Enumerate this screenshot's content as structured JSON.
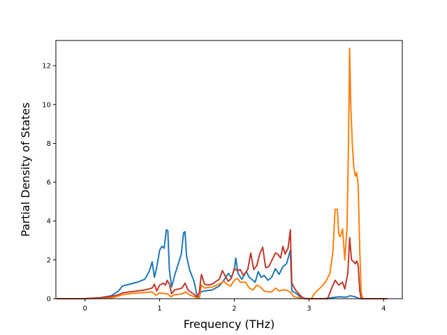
{
  "chart_data": {
    "type": "line",
    "title": "",
    "xlabel": "Frequency (THz)",
    "ylabel": "Partial Density of States",
    "xlim": [
      -0.39,
      4.25
    ],
    "ylim": [
      0,
      13.3
    ],
    "xticks": [
      0,
      1,
      2,
      3,
      4
    ],
    "yticks": [
      0,
      2,
      4,
      6,
      8,
      10,
      12
    ],
    "grid": false,
    "legend": "none",
    "series": [
      {
        "color": "#1f77b4",
        "points": [
          [
            -0.38,
            0
          ],
          [
            0,
            0
          ],
          [
            0.2,
            0.05
          ],
          [
            0.35,
            0.15
          ],
          [
            0.45,
            0.4
          ],
          [
            0.5,
            0.65
          ],
          [
            0.6,
            0.75
          ],
          [
            0.7,
            0.85
          ],
          [
            0.8,
            1.0
          ],
          [
            0.86,
            1.4
          ],
          [
            0.9,
            1.9
          ],
          [
            0.93,
            1.1
          ],
          [
            0.96,
            1.6
          ],
          [
            1.0,
            2.5
          ],
          [
            1.03,
            2.7
          ],
          [
            1.06,
            2.6
          ],
          [
            1.09,
            3.55
          ],
          [
            1.11,
            3.5
          ],
          [
            1.13,
            1.5
          ],
          [
            1.16,
            0.6
          ],
          [
            1.2,
            1.2
          ],
          [
            1.25,
            1.8
          ],
          [
            1.29,
            2.3
          ],
          [
            1.32,
            3.4
          ],
          [
            1.34,
            3.45
          ],
          [
            1.36,
            2.2
          ],
          [
            1.4,
            1.5
          ],
          [
            1.46,
            0.9
          ],
          [
            1.5,
            0.2
          ],
          [
            1.53,
            0.05
          ],
          [
            1.55,
            0.35
          ],
          [
            1.6,
            0.4
          ],
          [
            1.7,
            0.45
          ],
          [
            1.8,
            0.65
          ],
          [
            1.86,
            0.95
          ],
          [
            1.92,
            1.3
          ],
          [
            1.96,
            1.1
          ],
          [
            2.0,
            1.5
          ],
          [
            2.02,
            2.1
          ],
          [
            2.05,
            1.3
          ],
          [
            2.1,
            1.0
          ],
          [
            2.16,
            1.4
          ],
          [
            2.2,
            1.1
          ],
          [
            2.25,
            0.95
          ],
          [
            2.28,
            0.85
          ],
          [
            2.32,
            1.4
          ],
          [
            2.36,
            1.1
          ],
          [
            2.4,
            1.2
          ],
          [
            2.45,
            0.95
          ],
          [
            2.5,
            1.1
          ],
          [
            2.55,
            1.55
          ],
          [
            2.6,
            1.25
          ],
          [
            2.65,
            1.65
          ],
          [
            2.7,
            1.8
          ],
          [
            2.75,
            2.5
          ],
          [
            2.77,
            0.4
          ],
          [
            2.82,
            0.3
          ],
          [
            2.9,
            0.05
          ],
          [
            2.95,
            0
          ],
          [
            3.2,
            0
          ],
          [
            3.3,
            0.05
          ],
          [
            3.4,
            0.1
          ],
          [
            3.5,
            0.08
          ],
          [
            3.55,
            0.15
          ],
          [
            3.62,
            0.1
          ],
          [
            3.66,
            0.02
          ],
          [
            3.7,
            0
          ],
          [
            4.05,
            0
          ]
        ]
      },
      {
        "color": "#ff7f0e",
        "points": [
          [
            -0.38,
            0
          ],
          [
            0,
            0
          ],
          [
            0.3,
            0.02
          ],
          [
            0.4,
            0.08
          ],
          [
            0.5,
            0.2
          ],
          [
            0.6,
            0.25
          ],
          [
            0.7,
            0.3
          ],
          [
            0.8,
            0.32
          ],
          [
            0.9,
            0.35
          ],
          [
            0.95,
            0.18
          ],
          [
            1.0,
            0.3
          ],
          [
            1.1,
            0.25
          ],
          [
            1.15,
            0.1
          ],
          [
            1.2,
            0.2
          ],
          [
            1.3,
            0.25
          ],
          [
            1.35,
            0.35
          ],
          [
            1.4,
            0.2
          ],
          [
            1.5,
            0.05
          ],
          [
            1.53,
            0.02
          ],
          [
            1.56,
            0.7
          ],
          [
            1.6,
            0.55
          ],
          [
            1.7,
            0.6
          ],
          [
            1.8,
            0.75
          ],
          [
            1.86,
            0.9
          ],
          [
            1.9,
            0.75
          ],
          [
            1.95,
            0.65
          ],
          [
            2.0,
            0.95
          ],
          [
            2.04,
            1.05
          ],
          [
            2.08,
            0.85
          ],
          [
            2.15,
            0.85
          ],
          [
            2.2,
            0.55
          ],
          [
            2.25,
            0.45
          ],
          [
            2.3,
            0.7
          ],
          [
            2.35,
            0.6
          ],
          [
            2.4,
            0.4
          ],
          [
            2.45,
            0.35
          ],
          [
            2.5,
            0.35
          ],
          [
            2.55,
            0.55
          ],
          [
            2.6,
            0.4
          ],
          [
            2.65,
            0.45
          ],
          [
            2.7,
            0.45
          ],
          [
            2.76,
            0.3
          ],
          [
            2.8,
            0.1
          ],
          [
            2.9,
            0.02
          ],
          [
            3.03,
            0
          ],
          [
            3.08,
            0.3
          ],
          [
            3.15,
            0.55
          ],
          [
            3.22,
            0.85
          ],
          [
            3.28,
            1.3
          ],
          [
            3.32,
            2.4
          ],
          [
            3.35,
            4.6
          ],
          [
            3.38,
            4.6
          ],
          [
            3.4,
            3.3
          ],
          [
            3.42,
            3.2
          ],
          [
            3.45,
            3.6
          ],
          [
            3.48,
            2.0
          ],
          [
            3.51,
            3.7
          ],
          [
            3.53,
            8.0
          ],
          [
            3.545,
            12.9
          ],
          [
            3.56,
            10.0
          ],
          [
            3.58,
            8.0
          ],
          [
            3.6,
            6.8
          ],
          [
            3.62,
            6.3
          ],
          [
            3.64,
            6.5
          ],
          [
            3.66,
            5.8
          ],
          [
            3.68,
            2.5
          ],
          [
            3.7,
            0.3
          ],
          [
            3.72,
            0
          ],
          [
            4.05,
            0
          ]
        ]
      },
      {
        "color": "#c0392b",
        "points": [
          [
            -0.38,
            0
          ],
          [
            0,
            0
          ],
          [
            0.2,
            0.05
          ],
          [
            0.35,
            0.12
          ],
          [
            0.45,
            0.2
          ],
          [
            0.5,
            0.3
          ],
          [
            0.6,
            0.35
          ],
          [
            0.7,
            0.4
          ],
          [
            0.8,
            0.45
          ],
          [
            0.9,
            0.55
          ],
          [
            0.93,
            0.75
          ],
          [
            0.96,
            0.4
          ],
          [
            1.0,
            0.7
          ],
          [
            1.05,
            0.8
          ],
          [
            1.08,
            0.7
          ],
          [
            1.1,
            0.95
          ],
          [
            1.13,
            0.75
          ],
          [
            1.16,
            0.25
          ],
          [
            1.2,
            0.45
          ],
          [
            1.3,
            0.55
          ],
          [
            1.34,
            0.8
          ],
          [
            1.38,
            0.45
          ],
          [
            1.45,
            0.25
          ],
          [
            1.5,
            0.1
          ],
          [
            1.53,
            0.3
          ],
          [
            1.56,
            1.25
          ],
          [
            1.6,
            0.75
          ],
          [
            1.65,
            0.7
          ],
          [
            1.7,
            0.75
          ],
          [
            1.8,
            1.0
          ],
          [
            1.84,
            1.45
          ],
          [
            1.88,
            1.15
          ],
          [
            1.92,
            0.9
          ],
          [
            1.96,
            1.05
          ],
          [
            2.0,
            1.55
          ],
          [
            2.04,
            1.45
          ],
          [
            2.08,
            1.5
          ],
          [
            2.12,
            1.2
          ],
          [
            2.18,
            1.5
          ],
          [
            2.22,
            2.35
          ],
          [
            2.26,
            1.5
          ],
          [
            2.3,
            1.7
          ],
          [
            2.34,
            2.3
          ],
          [
            2.38,
            2.65
          ],
          [
            2.42,
            1.6
          ],
          [
            2.46,
            1.65
          ],
          [
            2.5,
            1.95
          ],
          [
            2.55,
            2.35
          ],
          [
            2.58,
            2.3
          ],
          [
            2.62,
            2.1
          ],
          [
            2.65,
            2.7
          ],
          [
            2.68,
            2.3
          ],
          [
            2.72,
            2.6
          ],
          [
            2.75,
            3.55
          ],
          [
            2.77,
            0.8
          ],
          [
            2.82,
            0.45
          ],
          [
            2.9,
            0.1
          ],
          [
            2.95,
            0
          ],
          [
            3.25,
            0
          ],
          [
            3.3,
            0.5
          ],
          [
            3.35,
            0.95
          ],
          [
            3.4,
            0.7
          ],
          [
            3.45,
            0.85
          ],
          [
            3.48,
            0.5
          ],
          [
            3.52,
            1.3
          ],
          [
            3.545,
            3.15
          ],
          [
            3.57,
            2.0
          ],
          [
            3.6,
            1.9
          ],
          [
            3.62,
            1.8
          ],
          [
            3.64,
            1.95
          ],
          [
            3.66,
            1.7
          ],
          [
            3.68,
            0.4
          ],
          [
            3.7,
            0
          ],
          [
            4.05,
            0
          ]
        ]
      }
    ]
  }
}
